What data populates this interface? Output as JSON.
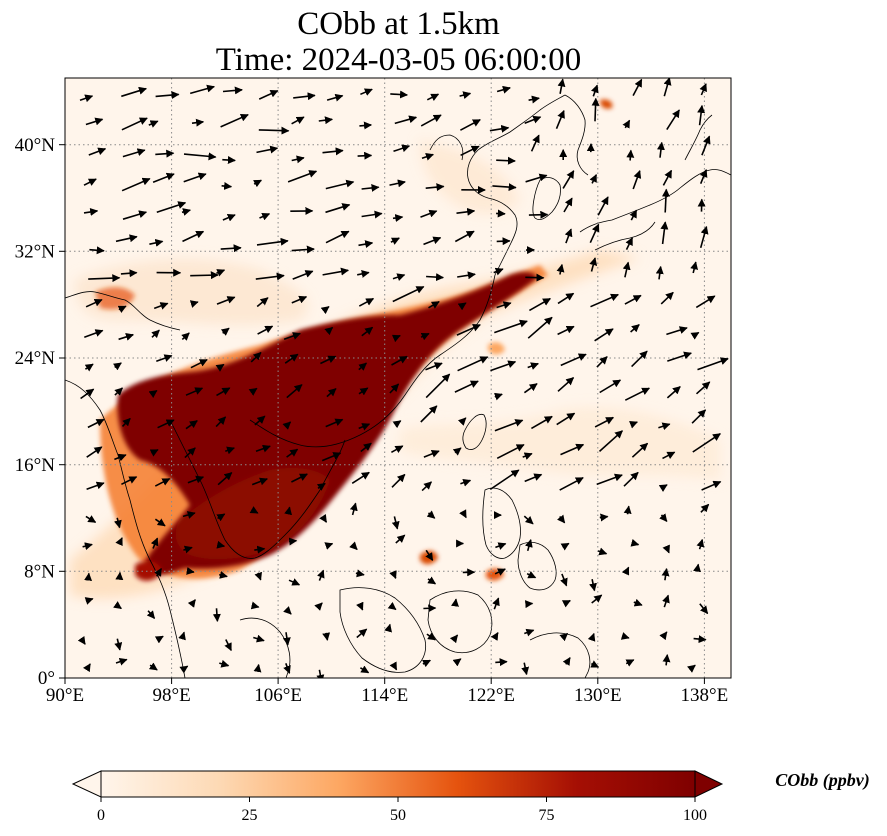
{
  "title": {
    "line1": "CObb at 1.5km",
    "line2": "Time: 2024-03-05 06:00:00"
  },
  "axes": {
    "lon_ticks": [
      "90°E",
      "98°E",
      "106°E",
      "114°E",
      "122°E",
      "130°E",
      "138°E"
    ],
    "lat_ticks": [
      "0°",
      "8°N",
      "16°N",
      "24°N",
      "32°N",
      "40°N"
    ],
    "lon_range": [
      90,
      140
    ],
    "lat_range": [
      0,
      45
    ],
    "grid": "dotted"
  },
  "colorbar": {
    "label": "CObb (ppbv)",
    "ticks": [
      "0",
      "25",
      "50",
      "75",
      "100"
    ],
    "range": [
      0,
      100
    ],
    "extend": "both",
    "colormap": [
      "#fff5eb",
      "#fdd0a2",
      "#fd8d3c",
      "#d94801",
      "#8c0d04",
      "#7f0000"
    ]
  },
  "colors": {
    "high": "#7f0000",
    "medium": "#d94801",
    "low": "#fdd0a2",
    "background": "#fff5eb",
    "coast": "#000000"
  }
}
